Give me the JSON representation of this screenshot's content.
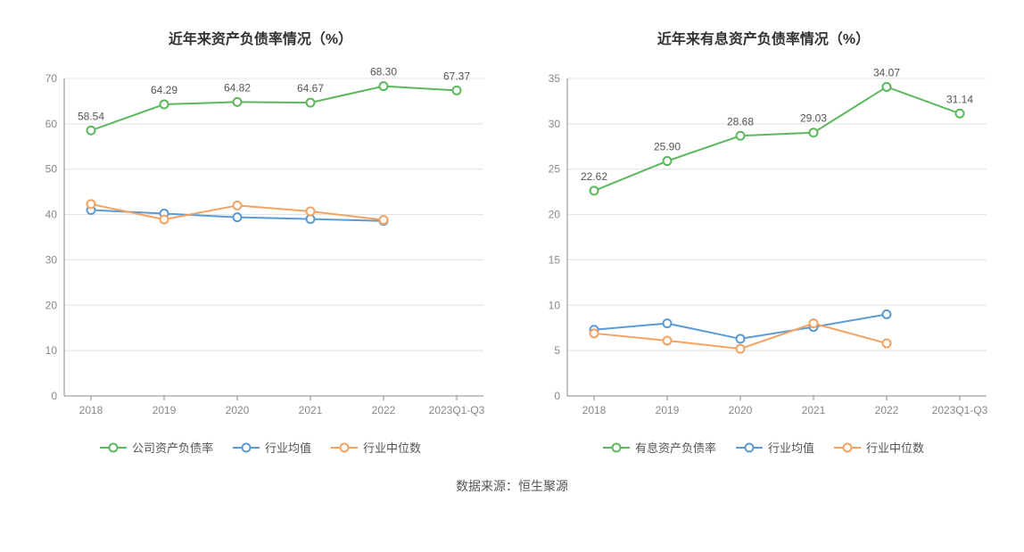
{
  "footer_text": "数据来源：恒生聚源",
  "charts": [
    {
      "id": "debt_ratio",
      "title": "近年来资产负债率情况（%）",
      "type": "line",
      "categories": [
        "2018",
        "2019",
        "2020",
        "2021",
        "2022",
        "2023Q1-Q3"
      ],
      "ylim": [
        0,
        70
      ],
      "ytick_step": 10,
      "background_color": "#ffffff",
      "grid_color": "#e0e0e0",
      "axis_color": "#888888",
      "tick_label_color": "#888888",
      "tick_label_fontsize": 12,
      "title_fontsize": 16,
      "data_label_fontsize": 12,
      "data_label_color": "#555555",
      "marker_radius": 4.5,
      "line_width": 2,
      "series": [
        {
          "name": "公司资产负债率",
          "color": "#5cb85c",
          "marker": "circle-open",
          "values": [
            58.54,
            64.29,
            64.82,
            64.67,
            68.3,
            67.37
          ],
          "show_labels": true,
          "clip_to_ylim": false
        },
        {
          "name": "行业均值",
          "color": "#5b9bd5",
          "marker": "circle-open",
          "values": [
            41.0,
            40.2,
            39.4,
            39.0,
            38.6,
            null
          ],
          "show_labels": false
        },
        {
          "name": "行业中位数",
          "color": "#f4a261",
          "marker": "circle-open",
          "values": [
            42.3,
            38.9,
            42.0,
            40.7,
            38.8,
            null
          ],
          "show_labels": false
        }
      ]
    },
    {
      "id": "interest_bearing_ratio",
      "title": "近年来有息资产负债率情况（%）",
      "type": "line",
      "categories": [
        "2018",
        "2019",
        "2020",
        "2021",
        "2022",
        "2023Q1-Q3"
      ],
      "ylim": [
        0,
        35
      ],
      "ytick_step": 5,
      "background_color": "#ffffff",
      "grid_color": "#e0e0e0",
      "axis_color": "#888888",
      "tick_label_color": "#888888",
      "tick_label_fontsize": 12,
      "title_fontsize": 16,
      "data_label_fontsize": 12,
      "data_label_color": "#555555",
      "marker_radius": 4.5,
      "line_width": 2,
      "series": [
        {
          "name": "有息资产负债率",
          "color": "#5cb85c",
          "marker": "circle-open",
          "values": [
            22.62,
            25.9,
            28.68,
            29.03,
            34.07,
            31.14
          ],
          "show_labels": true,
          "clip_to_ylim": false
        },
        {
          "name": "行业均值",
          "color": "#5b9bd5",
          "marker": "circle-open",
          "values": [
            7.3,
            8.0,
            6.3,
            7.6,
            9.0,
            null
          ],
          "show_labels": false
        },
        {
          "name": "行业中位数",
          "color": "#f4a261",
          "marker": "circle-open",
          "values": [
            6.9,
            6.1,
            5.2,
            8.0,
            5.8,
            null
          ],
          "show_labels": false
        }
      ]
    }
  ]
}
